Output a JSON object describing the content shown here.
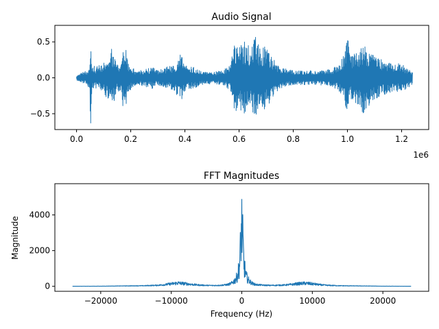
{
  "figure": {
    "background": "#ffffff",
    "series_color": "#1f77b4"
  },
  "chart_data": [
    {
      "type": "line",
      "title": "Audio Signal",
      "xlabel": "",
      "ylabel": "",
      "xlim": [
        -80000,
        1300000
      ],
      "ylim": [
        -0.72,
        0.73
      ],
      "x_ticks": [
        0,
        200000,
        400000,
        600000,
        800000,
        1000000,
        1200000
      ],
      "x_tick_labels": [
        "0.0",
        "0.2",
        "0.4",
        "0.6",
        "0.8",
        "1.0",
        "1.2"
      ],
      "x_offset_label": "1e6",
      "y_ticks": [
        -0.5,
        0.0,
        0.5
      ],
      "y_tick_labels": [
        "−0.5",
        "0.0",
        "0.5"
      ],
      "grid": false,
      "series": [
        {
          "x_range": [
            0,
            1240000
          ],
          "envelope": [
            [
              0,
              0.03
            ],
            [
              20000,
              0.08
            ],
            [
              40000,
              0.1
            ],
            [
              48000,
              0.2
            ],
            [
              52000,
              0.68
            ],
            [
              56000,
              0.2
            ],
            [
              70000,
              0.15
            ],
            [
              100000,
              0.2
            ],
            [
              130000,
              0.42
            ],
            [
              150000,
              0.2
            ],
            [
              160000,
              0.18
            ],
            [
              178000,
              0.55
            ],
            [
              190000,
              0.2
            ],
            [
              220000,
              0.1
            ],
            [
              250000,
              0.12
            ],
            [
              280000,
              0.15
            ],
            [
              300000,
              0.1
            ],
            [
              330000,
              0.15
            ],
            [
              360000,
              0.18
            ],
            [
              385000,
              0.35
            ],
            [
              400000,
              0.18
            ],
            [
              430000,
              0.15
            ],
            [
              460000,
              0.1
            ],
            [
              500000,
              0.08
            ],
            [
              540000,
              0.1
            ],
            [
              570000,
              0.2
            ],
            [
              580000,
              0.5
            ],
            [
              600000,
              0.45
            ],
            [
              620000,
              0.5
            ],
            [
              640000,
              0.45
            ],
            [
              660000,
              0.58
            ],
            [
              680000,
              0.4
            ],
            [
              700000,
              0.45
            ],
            [
              720000,
              0.3
            ],
            [
              750000,
              0.15
            ],
            [
              800000,
              0.1
            ],
            [
              850000,
              0.1
            ],
            [
              900000,
              0.1
            ],
            [
              940000,
              0.12
            ],
            [
              970000,
              0.2
            ],
            [
              990000,
              0.35
            ],
            [
              1000000,
              0.62
            ],
            [
              1010000,
              0.3
            ],
            [
              1030000,
              0.35
            ],
            [
              1060000,
              0.5
            ],
            [
              1080000,
              0.4
            ],
            [
              1100000,
              0.3
            ],
            [
              1130000,
              0.25
            ],
            [
              1160000,
              0.2
            ],
            [
              1190000,
              0.2
            ],
            [
              1220000,
              0.15
            ],
            [
              1240000,
              0.1
            ]
          ]
        }
      ]
    },
    {
      "type": "line",
      "title": "FFT Magnitudes",
      "xlabel": "Frequency (Hz)",
      "ylabel": "Magnitude",
      "xlim": [
        -26500,
        26500
      ],
      "ylim": [
        -280,
        5750
      ],
      "x_ticks": [
        -20000,
        -10000,
        0,
        10000,
        20000
      ],
      "x_tick_labels": [
        "−20000",
        "−10000",
        "0",
        "10000",
        "20000"
      ],
      "y_ticks": [
        0,
        2000,
        4000
      ],
      "y_tick_labels": [
        "0",
        "2000",
        "4000"
      ],
      "grid": false,
      "series": [
        {
          "x_range": [
            -24000,
            24000
          ],
          "envelope": [
            [
              -24000,
              5
            ],
            [
              -20000,
              10
            ],
            [
              -17000,
              30
            ],
            [
              -14000,
              50
            ],
            [
              -12000,
              90
            ],
            [
              -11000,
              140
            ],
            [
              -10000,
              220
            ],
            [
              -9000,
              290
            ],
            [
              -8000,
              230
            ],
            [
              -7000,
              160
            ],
            [
              -6000,
              110
            ],
            [
              -5000,
              80
            ],
            [
              -4000,
              70
            ],
            [
              -3000,
              90
            ],
            [
              -2000,
              150
            ],
            [
              -1500,
              250
            ],
            [
              -1000,
              500
            ],
            [
              -600,
              900
            ],
            [
              -300,
              2000
            ],
            [
              -100,
              4500
            ],
            [
              0,
              5450
            ],
            [
              100,
              4500
            ],
            [
              300,
              2000
            ],
            [
              600,
              900
            ],
            [
              1000,
              500
            ],
            [
              1500,
              250
            ],
            [
              2000,
              150
            ],
            [
              3000,
              100
            ],
            [
              4000,
              80
            ],
            [
              5000,
              90
            ],
            [
              6000,
              110
            ],
            [
              7000,
              160
            ],
            [
              8000,
              230
            ],
            [
              9000,
              270
            ],
            [
              10000,
              220
            ],
            [
              11000,
              140
            ],
            [
              12000,
              90
            ],
            [
              14000,
              50
            ],
            [
              17000,
              30
            ],
            [
              20000,
              10
            ],
            [
              24000,
              5
            ]
          ]
        }
      ]
    }
  ]
}
